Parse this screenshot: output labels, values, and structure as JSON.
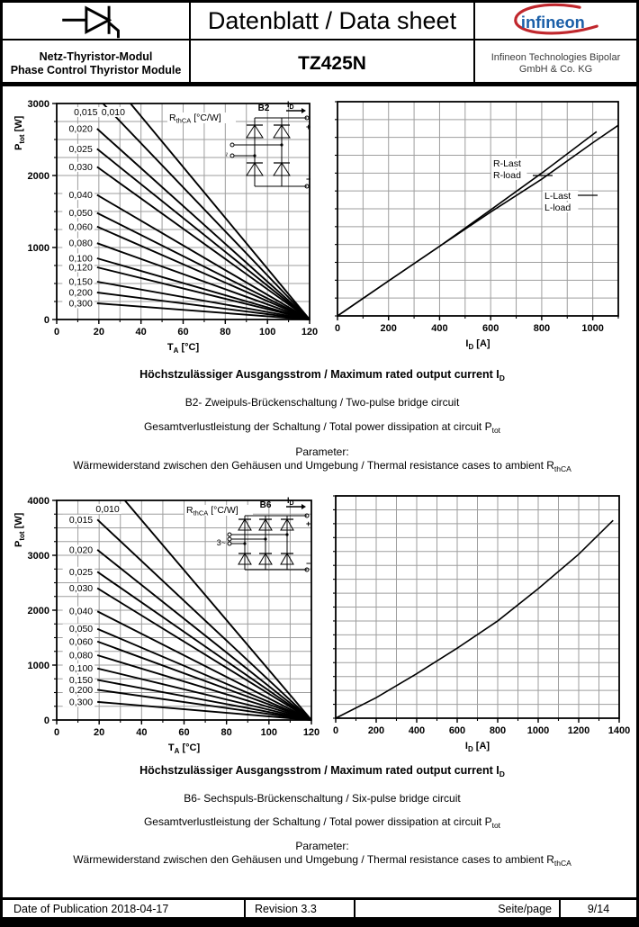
{
  "header": {
    "title": "Datenblatt / Data sheet",
    "product_line_de": "Netz-Thyristor-Modul",
    "product_line_en": "Phase Control Thyristor Module",
    "part_number": "TZ425N",
    "company_line1": "Infineon Technologies Bipolar",
    "company_line2": "GmbH & Co. KG",
    "logo_text": "infineon",
    "logo_blue": "#1b5fa8",
    "logo_red": "#c0272d"
  },
  "axis_labels": {
    "ptot": {
      "main": "P",
      "sub": "tot",
      "unit": " [W]"
    },
    "ta": {
      "main": "T",
      "sub": "A",
      "unit": " [°C]"
    },
    "id": {
      "main": "I",
      "sub": "D",
      "unit": " [A]"
    },
    "rthca": {
      "main": "R",
      "sub": "thCA",
      "unit": " [°C/W]"
    }
  },
  "insets": {
    "b2": {
      "tag": "B2",
      "i_main": "I",
      "i_sub": "D",
      "plus": "+",
      "minus": "−",
      "ac": "~"
    },
    "b6": {
      "tag": "B6",
      "i_main": "I",
      "i_sub": "D",
      "plus": "+",
      "minus": "−",
      "ac": "3~"
    }
  },
  "sections": {
    "b2": {
      "heading": [
        {
          "t": "Höchstzulässiger Ausgangsstrom / Maximum rated output current I"
        },
        {
          "sub": "D"
        }
      ],
      "line2": [
        {
          "t": "B2- Zweipuls-Brückenschaltung / Two-pulse bridge circuit"
        }
      ],
      "line3": [
        {
          "t": "Gesamtverlustleistung der Schaltung / Total power dissipation at circuit P"
        },
        {
          "sub": "tot"
        }
      ],
      "line4": [
        {
          "t": "Parameter:"
        }
      ],
      "line5": [
        {
          "t": "Wärmewiderstand zwischen den Gehäusen und Umgebung / Thermal resistance cases to ambient R"
        },
        {
          "sub": "thCA"
        }
      ]
    },
    "b6": {
      "heading": [
        {
          "t": "Höchstzulässiger Ausgangsstrom / Maximum rated output current I"
        },
        {
          "sub": "D"
        }
      ],
      "line2": [
        {
          "t": "B6- Sechspuls-Brückenschaltung / Six-pulse bridge circuit"
        }
      ],
      "line3": [
        {
          "t": "Gesamtverlustleistung der Schaltung / Total power dissipation at circuit P"
        },
        {
          "sub": "tot"
        }
      ],
      "line4": [
        {
          "t": "Parameter:"
        }
      ],
      "line5": [
        {
          "t": "Wärmewiderstand zwischen den Gehäusen und Umgebung / Thermal resistance cases to ambient R"
        },
        {
          "sub": "thCA"
        }
      ]
    }
  },
  "footer": {
    "date": "Date of Publication 2018-04-17",
    "revision": "Revision 3.3",
    "page_label": "Seite/page",
    "page_value": "9/14"
  },
  "chart_data": [
    {
      "id": "b2-derating",
      "type": "line",
      "xlabel": "T_A [°C]",
      "ylabel": "P_tot [W]",
      "parameter": "R_thCA [°C/W]",
      "xlim": [
        0,
        120
      ],
      "ylim": [
        0,
        3000
      ],
      "xticks": [
        0,
        20,
        40,
        60,
        80,
        100,
        120
      ],
      "yticks": [
        0,
        1000,
        2000,
        3000
      ],
      "x_grid_step": 10,
      "y_grid_step": 250,
      "converge_point": [
        120,
        0
      ],
      "series": [
        {
          "name": "0,010",
          "r": 0.01,
          "p_at_20": 3530
        },
        {
          "name": "0,015",
          "r": 0.015,
          "p_at_20": 3060
        },
        {
          "name": "0,020",
          "r": 0.02,
          "p_at_20": 2650
        },
        {
          "name": "0,025",
          "r": 0.025,
          "p_at_20": 2370
        },
        {
          "name": "0,030",
          "r": 0.03,
          "p_at_20": 2120
        },
        {
          "name": "0,040",
          "r": 0.04,
          "p_at_20": 1730
        },
        {
          "name": "0,050",
          "r": 0.05,
          "p_at_20": 1480
        },
        {
          "name": "0,060",
          "r": 0.06,
          "p_at_20": 1290
        },
        {
          "name": "0,080",
          "r": 0.08,
          "p_at_20": 1060
        },
        {
          "name": "0,100",
          "r": 0.1,
          "p_at_20": 850
        },
        {
          "name": "0,120",
          "r": 0.12,
          "p_at_20": 725
        },
        {
          "name": "0,150",
          "r": 0.15,
          "p_at_20": 525
        },
        {
          "name": "0,200",
          "r": 0.2,
          "p_at_20": 375
        },
        {
          "name": "0,300",
          "r": 0.3,
          "p_at_20": 225
        }
      ]
    },
    {
      "id": "b2-output",
      "type": "line",
      "xlabel": "I_D [A]",
      "ylabel": "",
      "xlim": [
        0,
        1100
      ],
      "ylim": [
        0,
        3000
      ],
      "xticks": [
        0,
        200,
        400,
        600,
        800,
        1000
      ],
      "x_grid_step": 100,
      "y_grid_step": 250,
      "series": [
        {
          "name": "R-load",
          "label_lines": [
            "R-Last",
            "R-load"
          ],
          "points": [
            [
              0,
              0
            ],
            [
              200,
              490
            ],
            [
              400,
              975
            ],
            [
              600,
              1485
            ],
            [
              800,
              2000
            ],
            [
              1000,
              2540
            ],
            [
              1015,
              2580
            ]
          ]
        },
        {
          "name": "L-load",
          "label_lines": [
            "L-Last",
            "L-load"
          ],
          "points": [
            [
              0,
              0
            ],
            [
              200,
              490
            ],
            [
              400,
              975
            ],
            [
              600,
              1455
            ],
            [
              800,
              1915
            ],
            [
              1000,
              2425
            ],
            [
              1100,
              2670
            ]
          ]
        }
      ]
    },
    {
      "id": "b6-derating",
      "type": "line",
      "xlabel": "T_A [°C]",
      "ylabel": "P_tot [W]",
      "parameter": "R_thCA [°C/W]",
      "xlim": [
        0,
        120
      ],
      "ylim": [
        0,
        4000
      ],
      "xticks": [
        0,
        20,
        40,
        60,
        80,
        100,
        120
      ],
      "yticks": [
        0,
        1000,
        2000,
        3000,
        4000
      ],
      "x_grid_step": 10,
      "y_grid_step": 250,
      "converge_point": [
        120,
        0
      ],
      "series": [
        {
          "name": "0,010",
          "r": 0.01,
          "p_at_20": 4550
        },
        {
          "name": "0,015",
          "r": 0.015,
          "p_at_20": 3650
        },
        {
          "name": "0,020",
          "r": 0.02,
          "p_at_20": 3100
        },
        {
          "name": "0,025",
          "r": 0.025,
          "p_at_20": 2700
        },
        {
          "name": "0,030",
          "r": 0.03,
          "p_at_20": 2400
        },
        {
          "name": "0,040",
          "r": 0.04,
          "p_at_20": 1980
        },
        {
          "name": "0,050",
          "r": 0.05,
          "p_at_20": 1660
        },
        {
          "name": "0,060",
          "r": 0.06,
          "p_at_20": 1430
        },
        {
          "name": "0,080",
          "r": 0.08,
          "p_at_20": 1180
        },
        {
          "name": "0,100",
          "r": 0.1,
          "p_at_20": 940
        },
        {
          "name": "0,150",
          "r": 0.15,
          "p_at_20": 730
        },
        {
          "name": "0,200",
          "r": 0.2,
          "p_at_20": 550
        },
        {
          "name": "0,300",
          "r": 0.3,
          "p_at_20": 330
        }
      ]
    },
    {
      "id": "b6-output",
      "type": "line",
      "xlabel": "I_D [A]",
      "ylabel": "",
      "xlim": [
        0,
        1400
      ],
      "ylim": [
        0,
        4000
      ],
      "xticks": [
        0,
        200,
        400,
        600,
        800,
        1000,
        1200,
        1400
      ],
      "x_grid_step": 100,
      "y_grid_step": 250,
      "series": [
        {
          "name": "",
          "label_lines": [],
          "points": [
            [
              0,
              0
            ],
            [
              200,
              370
            ],
            [
              400,
              800
            ],
            [
              600,
              1260
            ],
            [
              800,
              1750
            ],
            [
              1000,
              2330
            ],
            [
              1200,
              2950
            ],
            [
              1370,
              3560
            ]
          ]
        }
      ]
    }
  ]
}
